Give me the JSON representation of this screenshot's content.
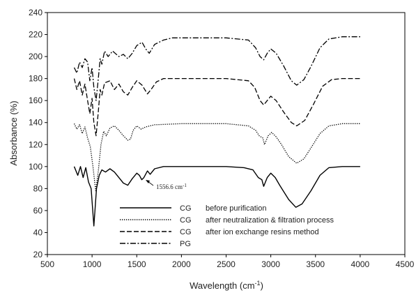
{
  "chart_data": {
    "type": "line",
    "xlabel": "Wavelength",
    "xlabel_unit": "(cm",
    "xlabel_sup": "-1",
    "xlabel_close": ")",
    "ylabel": "Absorbance (%)",
    "xlim": [
      500,
      4500
    ],
    "ylim": [
      20,
      240
    ],
    "xticks": [
      500,
      1000,
      1500,
      2000,
      2500,
      3000,
      3500,
      4000,
      4500
    ],
    "yticks": [
      20,
      40,
      60,
      80,
      100,
      120,
      140,
      160,
      180,
      200,
      220,
      240
    ],
    "grid": false,
    "legend_position": "lower-center",
    "annotation": {
      "text": "1556.6 cm",
      "sup": "-1",
      "x": 1556.6,
      "y": 88
    },
    "series": [
      {
        "name": "CG   before purification",
        "name_left": "CG",
        "name_right": "before purification",
        "style": "solid",
        "color": "#000000",
        "points": [
          [
            800,
            100
          ],
          [
            840,
            92
          ],
          [
            870,
            100
          ],
          [
            900,
            90
          ],
          [
            930,
            99
          ],
          [
            960,
            86
          ],
          [
            990,
            80
          ],
          [
            1020,
            46
          ],
          [
            1050,
            80
          ],
          [
            1080,
            92
          ],
          [
            1110,
            97
          ],
          [
            1150,
            95
          ],
          [
            1200,
            98
          ],
          [
            1250,
            95
          ],
          [
            1300,
            90
          ],
          [
            1350,
            85
          ],
          [
            1400,
            83
          ],
          [
            1450,
            89
          ],
          [
            1500,
            94
          ],
          [
            1530,
            92
          ],
          [
            1556,
            88
          ],
          [
            1580,
            90
          ],
          [
            1620,
            96
          ],
          [
            1650,
            93
          ],
          [
            1700,
            98
          ],
          [
            1800,
            100
          ],
          [
            2000,
            100
          ],
          [
            2500,
            100
          ],
          [
            2700,
            99
          ],
          [
            2800,
            97
          ],
          [
            2860,
            90
          ],
          [
            2900,
            88
          ],
          [
            2920,
            82
          ],
          [
            2960,
            90
          ],
          [
            3000,
            94
          ],
          [
            3050,
            90
          ],
          [
            3100,
            83
          ],
          [
            3200,
            70
          ],
          [
            3280,
            63
          ],
          [
            3350,
            66
          ],
          [
            3450,
            78
          ],
          [
            3550,
            92
          ],
          [
            3650,
            99
          ],
          [
            3800,
            100
          ],
          [
            4000,
            100
          ]
        ]
      },
      {
        "name": "CG   after neutralization & filtration process",
        "name_left": "CG",
        "name_right": "after neutralization & filtration process",
        "style": "dotted",
        "color": "#000000",
        "points": [
          [
            800,
            139
          ],
          [
            830,
            134
          ],
          [
            860,
            138
          ],
          [
            890,
            130
          ],
          [
            920,
            136
          ],
          [
            950,
            126
          ],
          [
            980,
            118
          ],
          [
            1010,
            100
          ],
          [
            1040,
            78
          ],
          [
            1070,
            96
          ],
          [
            1100,
            120
          ],
          [
            1130,
            132
          ],
          [
            1160,
            128
          ],
          [
            1200,
            135
          ],
          [
            1250,
            137
          ],
          [
            1300,
            133
          ],
          [
            1350,
            128
          ],
          [
            1400,
            124
          ],
          [
            1430,
            125
          ],
          [
            1460,
            133
          ],
          [
            1500,
            137
          ],
          [
            1550,
            134
          ],
          [
            1600,
            136
          ],
          [
            1700,
            138
          ],
          [
            2000,
            139
          ],
          [
            2500,
            139
          ],
          [
            2750,
            137
          ],
          [
            2830,
            133
          ],
          [
            2870,
            128
          ],
          [
            2910,
            126
          ],
          [
            2930,
            120
          ],
          [
            2970,
            128
          ],
          [
            3010,
            131
          ],
          [
            3060,
            127
          ],
          [
            3120,
            120
          ],
          [
            3200,
            109
          ],
          [
            3290,
            103
          ],
          [
            3370,
            107
          ],
          [
            3450,
            117
          ],
          [
            3550,
            130
          ],
          [
            3650,
            137
          ],
          [
            3800,
            139
          ],
          [
            4000,
            139
          ]
        ]
      },
      {
        "name": "CG   after ion exchange resins method",
        "name_left": "CG",
        "name_right": "after ion exchange resins method",
        "style": "dashed",
        "color": "#000000",
        "points": [
          [
            800,
            180
          ],
          [
            830,
            170
          ],
          [
            860,
            178
          ],
          [
            890,
            165
          ],
          [
            920,
            175
          ],
          [
            950,
            160
          ],
          [
            975,
            148
          ],
          [
            1000,
            162
          ],
          [
            1020,
            140
          ],
          [
            1045,
            128
          ],
          [
            1070,
            150
          ],
          [
            1090,
            170
          ],
          [
            1110,
            165
          ],
          [
            1140,
            176
          ],
          [
            1200,
            178
          ],
          [
            1250,
            170
          ],
          [
            1300,
            175
          ],
          [
            1350,
            168
          ],
          [
            1400,
            165
          ],
          [
            1450,
            172
          ],
          [
            1500,
            178
          ],
          [
            1560,
            174
          ],
          [
            1620,
            166
          ],
          [
            1660,
            170
          ],
          [
            1720,
            177
          ],
          [
            1800,
            180
          ],
          [
            2000,
            180
          ],
          [
            2500,
            180
          ],
          [
            2750,
            178
          ],
          [
            2820,
            172
          ],
          [
            2880,
            160
          ],
          [
            2920,
            156
          ],
          [
            2960,
            160
          ],
          [
            3000,
            164
          ],
          [
            3060,
            160
          ],
          [
            3140,
            150
          ],
          [
            3230,
            140
          ],
          [
            3290,
            137
          ],
          [
            3380,
            142
          ],
          [
            3480,
            157
          ],
          [
            3580,
            173
          ],
          [
            3680,
            179
          ],
          [
            3800,
            180
          ],
          [
            4000,
            180
          ]
        ]
      },
      {
        "name": "PG",
        "name_left": "PG",
        "name_right": "",
        "style": "dashdot",
        "color": "#000000",
        "points": [
          [
            800,
            190
          ],
          [
            830,
            185
          ],
          [
            860,
            195
          ],
          [
            890,
            190
          ],
          [
            920,
            198
          ],
          [
            950,
            195
          ],
          [
            975,
            178
          ],
          [
            1000,
            190
          ],
          [
            1020,
            172
          ],
          [
            1045,
            160
          ],
          [
            1070,
            180
          ],
          [
            1090,
            198
          ],
          [
            1110,
            193
          ],
          [
            1140,
            205
          ],
          [
            1180,
            200
          ],
          [
            1230,
            205
          ],
          [
            1300,
            200
          ],
          [
            1350,
            202
          ],
          [
            1400,
            198
          ],
          [
            1450,
            203
          ],
          [
            1500,
            210
          ],
          [
            1560,
            213
          ],
          [
            1600,
            207
          ],
          [
            1640,
            203
          ],
          [
            1700,
            211
          ],
          [
            1800,
            215
          ],
          [
            1900,
            217
          ],
          [
            2000,
            217
          ],
          [
            2500,
            217
          ],
          [
            2750,
            215
          ],
          [
            2830,
            208
          ],
          [
            2880,
            200
          ],
          [
            2920,
            197
          ],
          [
            2960,
            203
          ],
          [
            3000,
            207
          ],
          [
            3060,
            203
          ],
          [
            3140,
            192
          ],
          [
            3230,
            178
          ],
          [
            3290,
            174
          ],
          [
            3370,
            179
          ],
          [
            3450,
            191
          ],
          [
            3550,
            208
          ],
          [
            3650,
            216
          ],
          [
            3800,
            218
          ],
          [
            4000,
            218
          ]
        ]
      }
    ]
  }
}
